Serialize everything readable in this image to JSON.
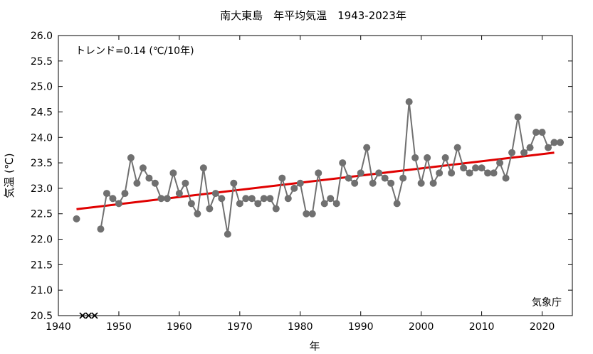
{
  "chart_data": {
    "type": "line",
    "title": "南大東島　年平均気温　1943-2023年",
    "xlabel": "年",
    "ylabel": "気温 (℃)",
    "annotation": "トレンド=0.14 (℃/10年)",
    "credit": "気象庁",
    "xlim": [
      1940,
      2025
    ],
    "ylim": [
      20.5,
      26.0
    ],
    "x_ticks": [
      1940,
      1950,
      1960,
      1970,
      1980,
      1990,
      2000,
      2010,
      2020
    ],
    "y_ticks": [
      20.5,
      21.0,
      21.5,
      22.0,
      22.5,
      23.0,
      23.5,
      24.0,
      24.5,
      25.0,
      25.5,
      26.0
    ],
    "grid": false,
    "colors": {
      "series": "#707070",
      "trend": "#e00000",
      "missing": "#000000"
    },
    "series": [
      {
        "values": [
          [
            1943,
            22.4
          ],
          [
            1947,
            22.2
          ],
          [
            1948,
            22.9
          ],
          [
            1949,
            22.8
          ],
          [
            1950,
            22.7
          ],
          [
            1951,
            22.9
          ],
          [
            1952,
            23.6
          ],
          [
            1953,
            23.1
          ],
          [
            1954,
            23.4
          ],
          [
            1955,
            23.2
          ],
          [
            1956,
            23.1
          ],
          [
            1957,
            22.8
          ],
          [
            1958,
            22.8
          ],
          [
            1959,
            23.3
          ],
          [
            1960,
            22.9
          ],
          [
            1961,
            23.1
          ],
          [
            1962,
            22.7
          ],
          [
            1963,
            22.5
          ],
          [
            1964,
            23.4
          ],
          [
            1965,
            22.6
          ],
          [
            1966,
            22.9
          ],
          [
            1967,
            22.8
          ],
          [
            1968,
            22.1
          ],
          [
            1969,
            23.1
          ],
          [
            1970,
            22.7
          ],
          [
            1971,
            22.8
          ],
          [
            1972,
            22.8
          ],
          [
            1973,
            22.7
          ],
          [
            1974,
            22.8
          ],
          [
            1975,
            22.8
          ],
          [
            1976,
            22.6
          ],
          [
            1977,
            23.2
          ],
          [
            1978,
            22.8
          ],
          [
            1979,
            23.0
          ],
          [
            1980,
            23.1
          ],
          [
            1981,
            22.5
          ],
          [
            1982,
            22.5
          ],
          [
            1983,
            23.3
          ],
          [
            1984,
            22.7
          ],
          [
            1985,
            22.8
          ],
          [
            1986,
            22.7
          ],
          [
            1987,
            23.5
          ],
          [
            1988,
            23.2
          ],
          [
            1989,
            23.1
          ],
          [
            1990,
            23.3
          ],
          [
            1991,
            23.8
          ],
          [
            1992,
            23.1
          ],
          [
            1993,
            23.3
          ],
          [
            1994,
            23.2
          ],
          [
            1995,
            23.1
          ],
          [
            1996,
            22.7
          ],
          [
            1997,
            23.2
          ],
          [
            1998,
            24.7
          ],
          [
            1999,
            23.6
          ],
          [
            2000,
            23.1
          ],
          [
            2001,
            23.6
          ],
          [
            2002,
            23.1
          ],
          [
            2003,
            23.3
          ],
          [
            2004,
            23.6
          ],
          [
            2005,
            23.3
          ],
          [
            2006,
            23.8
          ],
          [
            2007,
            23.4
          ],
          [
            2008,
            23.3
          ],
          [
            2009,
            23.4
          ],
          [
            2010,
            23.4
          ],
          [
            2011,
            23.3
          ],
          [
            2012,
            23.3
          ],
          [
            2013,
            23.5
          ],
          [
            2014,
            23.2
          ],
          [
            2015,
            23.7
          ],
          [
            2016,
            24.4
          ],
          [
            2017,
            23.7
          ],
          [
            2018,
            23.8
          ],
          [
            2019,
            24.1
          ],
          [
            2020,
            24.1
          ],
          [
            2021,
            23.8
          ],
          [
            2022,
            23.9
          ],
          [
            2023,
            23.9
          ]
        ]
      }
    ],
    "trend": {
      "x": [
        1943,
        2022
      ],
      "y": [
        22.59,
        23.7
      ]
    },
    "missing_years": [
      1944,
      1945,
      1946
    ]
  }
}
